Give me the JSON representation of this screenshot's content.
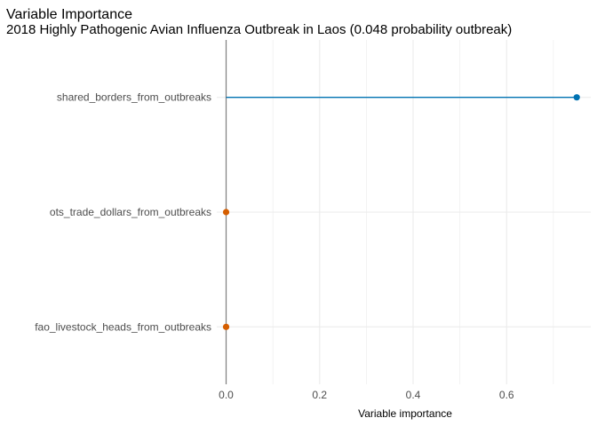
{
  "chart_data": {
    "type": "dot",
    "title": "Variable Importance",
    "subtitle": "2018 Highly Pathogenic Avian Influenza Outbreak in Laos (0.048 probability outbreak)",
    "xlabel": "Variable importance",
    "ylabel": "",
    "xlim": [
      -0.02,
      0.78
    ],
    "xticks": [
      0.0,
      0.2,
      0.4,
      0.6
    ],
    "xtick_labels": [
      "0.0",
      "0.2",
      "0.4",
      "0.6"
    ],
    "grid": true,
    "legend": "none",
    "colors": {
      "positive": "#0072B2",
      "zero": "#D55E00",
      "zero_line": "#808080",
      "grid": "#ebebeb"
    },
    "categories": [
      "shared_borders_from_outbreaks",
      "ots_trade_dollars_from_outbreaks",
      "fao_livestock_heads_from_outbreaks"
    ],
    "values": [
      0.75,
      0.0,
      0.0
    ]
  }
}
